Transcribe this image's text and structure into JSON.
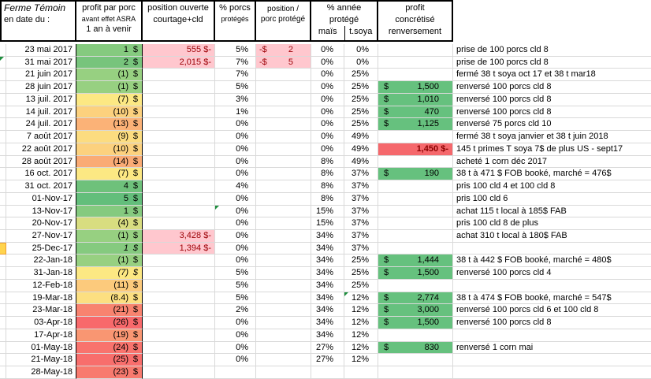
{
  "header": {
    "farm_title": "Ferme Témoin",
    "date_label": "en date du :",
    "profit_l1": "profit par porc",
    "profit_l2": "avant effet ASRA",
    "profit_l3": "1 an à venir",
    "position_l1": "position ouverte",
    "position_l2": "courtage+cld",
    "pct_porcs_l1": "% porcs",
    "pct_porcs_l2": "protégés",
    "pos_per_pig_l1": "position /",
    "pos_per_pig_l2": "porc protégé",
    "pct_year_label": "% année protégé",
    "corn_label": "maïs",
    "soy_label": "t.soya",
    "profit_real_l1": "profit",
    "profit_real_l2": "concrétisé",
    "profit_real_l3": "renversement"
  },
  "colors": {
    "pink_bg": "#FFC7CE",
    "pink_text": "#9C0006",
    "red_bg": "#F5686C",
    "red_text": "#8B0000",
    "green_bg": "#66C17E",
    "comment_triangle": "#1E8E3E",
    "row_marker_yellow": "#FFD44D",
    "gridline": "#d9d9d9",
    "border": "#000000"
  },
  "rows": [
    {
      "date": "23 mai 2017",
      "sliver": "",
      "profit": "1",
      "profit_bg": "#85CA7F",
      "profit_italic": false,
      "position": "555 $-",
      "position_pink": true,
      "pct_porcs": "5%",
      "pct_porcs_comment": false,
      "ppp_left": "-$",
      "ppp_right": "2",
      "ppp_pink": true,
      "mais": "0%",
      "soya": "0%",
      "soya_comment": false,
      "realized": null,
      "note": "prise de 100 porcs cld 8"
    },
    {
      "date": "31 mai 2017",
      "sliver": "comment",
      "profit": "2",
      "profit_bg": "#77C47C",
      "profit_italic": false,
      "position": "2,015 $-",
      "position_pink": true,
      "pct_porcs": "7%",
      "pct_porcs_comment": false,
      "ppp_left": "-$",
      "ppp_right": "5",
      "ppp_pink": true,
      "mais": "0%",
      "soya": "0%",
      "soya_comment": false,
      "realized": null,
      "note": "prise de 100 porcs cld 8"
    },
    {
      "date": "21 juin 2017",
      "sliver": "",
      "profit": "(1)",
      "profit_bg": "#97D081",
      "profit_italic": false,
      "position": "",
      "position_pink": false,
      "pct_porcs": "7%",
      "pct_porcs_comment": false,
      "ppp_left": "",
      "ppp_right": "",
      "ppp_pink": false,
      "mais": "0%",
      "soya": "25%",
      "soya_comment": false,
      "realized": null,
      "note": "fermé 38 t soya oct 17 et 38 t mar18"
    },
    {
      "date": "28 juin 2017",
      "sliver": "",
      "profit": "(1)",
      "profit_bg": "#97D081",
      "profit_italic": false,
      "position": "",
      "position_pink": false,
      "pct_porcs": "5%",
      "pct_porcs_comment": false,
      "ppp_left": "",
      "ppp_right": "",
      "ppp_pink": false,
      "mais": "0%",
      "soya": "25%",
      "soya_comment": false,
      "realized": {
        "type": "green",
        "value": "1,500"
      },
      "note": "renversé 100 porcs cld 8"
    },
    {
      "date": "13 juil. 2017",
      "sliver": "",
      "profit": "(7)",
      "profit_bg": "#FCE883",
      "profit_italic": false,
      "position": "",
      "position_pink": false,
      "pct_porcs": "3%",
      "pct_porcs_comment": false,
      "ppp_left": "",
      "ppp_right": "",
      "ppp_pink": false,
      "mais": "0%",
      "soya": "25%",
      "soya_comment": false,
      "realized": {
        "type": "green",
        "value": "1,010"
      },
      "note": "renversé 100 porcs cld 8"
    },
    {
      "date": "14 juil. 2017",
      "sliver": "",
      "profit": "(10)",
      "profit_bg": "#FCD17E",
      "profit_italic": false,
      "position": "",
      "position_pink": false,
      "pct_porcs": "1%",
      "pct_porcs_comment": false,
      "ppp_left": "",
      "ppp_right": "",
      "ppp_pink": false,
      "mais": "0%",
      "soya": "25%",
      "soya_comment": false,
      "realized": {
        "type": "green",
        "value": "470"
      },
      "note": "renversé 100 porcs cld 8"
    },
    {
      "date": "24 juil. 2017",
      "sliver": "",
      "profit": "(13)",
      "profit_bg": "#FBB277",
      "profit_italic": false,
      "position": "",
      "position_pink": false,
      "pct_porcs": "0%",
      "pct_porcs_comment": false,
      "ppp_left": "",
      "ppp_right": "",
      "ppp_pink": false,
      "mais": "0%",
      "soya": "25%",
      "soya_comment": false,
      "realized": {
        "type": "green",
        "value": "1,125"
      },
      "note": "renversé 75 porcs cld 10"
    },
    {
      "date": "7 août 2017",
      "sliver": "",
      "profit": "(9)",
      "profit_bg": "#FCDC80",
      "profit_italic": false,
      "position": "",
      "position_pink": false,
      "pct_porcs": "0%",
      "pct_porcs_comment": false,
      "ppp_left": "",
      "ppp_right": "",
      "ppp_pink": false,
      "mais": "0%",
      "soya": "49%",
      "soya_comment": false,
      "realized": null,
      "note": "fermé 38 t soya janvier et 38 t juin 2018"
    },
    {
      "date": "22 août 2017",
      "sliver": "",
      "profit": "(10)",
      "profit_bg": "#FCD17E",
      "profit_italic": false,
      "position": "",
      "position_pink": false,
      "pct_porcs": "0%",
      "pct_porcs_comment": false,
      "ppp_left": "",
      "ppp_right": "",
      "ppp_pink": false,
      "mais": "0%",
      "soya": "49%",
      "soya_comment": false,
      "realized": {
        "type": "red",
        "text": "1,450 $-"
      },
      "note": "145 t  primes T soya 7$ de plus US - sept17"
    },
    {
      "date": "28 août 2017",
      "sliver": "",
      "profit": "(14)",
      "profit_bg": "#FAAB75",
      "profit_italic": false,
      "position": "",
      "position_pink": false,
      "pct_porcs": "0%",
      "pct_porcs_comment": false,
      "ppp_left": "",
      "ppp_right": "",
      "ppp_pink": false,
      "mais": "8%",
      "soya": "49%",
      "soya_comment": false,
      "realized": null,
      "note": "acheté 1 corn déc 2017"
    },
    {
      "date": "16 oct. 2017",
      "sliver": "",
      "profit": "(7)",
      "profit_bg": "#FCE883",
      "profit_italic": false,
      "position": "",
      "position_pink": false,
      "pct_porcs": "0%",
      "pct_porcs_comment": false,
      "ppp_left": "",
      "ppp_right": "",
      "ppp_pink": false,
      "mais": "8%",
      "soya": "37%",
      "soya_comment": false,
      "realized": {
        "type": "green",
        "value": "190"
      },
      "note": "38 t  à 471 $ FOB booké, marché = 476$"
    },
    {
      "date": "31 oct. 2017",
      "sliver": "",
      "profit": "4",
      "profit_bg": "#6EC17B",
      "profit_italic": false,
      "position": "",
      "position_pink": false,
      "pct_porcs": "4%",
      "pct_porcs_comment": false,
      "ppp_left": "",
      "ppp_right": "",
      "ppp_pink": false,
      "mais": "8%",
      "soya": "37%",
      "soya_comment": false,
      "realized": null,
      "note": "pris 100 cld 4  et 100 cld  8"
    },
    {
      "date": "01-Nov-17",
      "sliver": "",
      "profit": "5",
      "profit_bg": "#63BE7B",
      "profit_italic": false,
      "position": "",
      "position_pink": false,
      "pct_porcs": "0%",
      "pct_porcs_comment": false,
      "ppp_left": "",
      "ppp_right": "",
      "ppp_pink": false,
      "mais": "8%",
      "soya": "37%",
      "soya_comment": false,
      "realized": null,
      "note": "pris 100 cld 6"
    },
    {
      "date": "13-Nov-17",
      "sliver": "",
      "profit": "1",
      "profit_bg": "#85CA7F",
      "profit_italic": false,
      "position": "",
      "position_pink": false,
      "pct_porcs": "0%",
      "pct_porcs_comment": true,
      "ppp_left": "",
      "ppp_right": "",
      "ppp_pink": false,
      "mais": "15%",
      "soya": "37%",
      "soya_comment": false,
      "realized": null,
      "note": "achat 115 t  local à 185$ FAB"
    },
    {
      "date": "20-Nov-17",
      "sliver": "",
      "profit": "(4)",
      "profit_bg": "#D8DD80",
      "profit_italic": false,
      "position": "",
      "position_pink": false,
      "pct_porcs": "0%",
      "pct_porcs_comment": false,
      "ppp_left": "",
      "ppp_right": "",
      "ppp_pink": false,
      "mais": "15%",
      "soya": "37%",
      "soya_comment": false,
      "realized": null,
      "note": "pris 100 cld 8 de plus"
    },
    {
      "date": "27-Nov-17",
      "sliver": "",
      "profit": "(1)",
      "profit_bg": "#97D081",
      "profit_italic": false,
      "position": "3,428 $-",
      "position_pink": true,
      "pct_porcs": "0%",
      "pct_porcs_comment": false,
      "ppp_left": "",
      "ppp_right": "",
      "ppp_pink": false,
      "mais": "34%",
      "soya": "37%",
      "soya_comment": false,
      "realized": null,
      "note": "achat 310 t  local à 180$ FAB"
    },
    {
      "date": "25-Dec-17",
      "sliver": "yellow",
      "profit": "1",
      "profit_bg": "#85CA7F",
      "profit_italic": true,
      "position": "1,394 $-",
      "position_pink": true,
      "pct_porcs": "0%",
      "pct_porcs_comment": false,
      "ppp_left": "",
      "ppp_right": "",
      "ppp_pink": false,
      "mais": "34%",
      "soya": "37%",
      "soya_comment": false,
      "realized": null,
      "note": ""
    },
    {
      "date": "22-Jan-18",
      "sliver": "",
      "profit": "(1)",
      "profit_bg": "#97D081",
      "profit_italic": false,
      "position": "",
      "position_pink": false,
      "pct_porcs": "0%",
      "pct_porcs_comment": false,
      "ppp_left": "",
      "ppp_right": "",
      "ppp_pink": false,
      "mais": "34%",
      "soya": "25%",
      "soya_comment": false,
      "realized": {
        "type": "green",
        "value": "1,444"
      },
      "note": "38 t  à 442 $ FOB booké, marché = 480$"
    },
    {
      "date": "31-Jan-18",
      "sliver": "",
      "profit": "(7)",
      "profit_bg": "#FCE883",
      "profit_italic": true,
      "position": "",
      "position_pink": false,
      "pct_porcs": "5%",
      "pct_porcs_comment": false,
      "ppp_left": "",
      "ppp_right": "",
      "ppp_pink": false,
      "mais": "34%",
      "soya": "25%",
      "soya_comment": false,
      "realized": {
        "type": "green",
        "value": "1,500"
      },
      "note": "renversé 100 porcs cld 4"
    },
    {
      "date": "12-Feb-18",
      "sliver": "",
      "profit": "(11)",
      "profit_bg": "#FCCA7C",
      "profit_italic": false,
      "position": "",
      "position_pink": false,
      "pct_porcs": "5%",
      "pct_porcs_comment": false,
      "ppp_left": "",
      "ppp_right": "",
      "ppp_pink": false,
      "mais": "34%",
      "soya": "25%",
      "soya_comment": false,
      "realized": null,
      "note": ""
    },
    {
      "date": "19-Mar-18",
      "sliver": "",
      "profit": "(8.4)",
      "profit_bg": "#FCDF81",
      "profit_italic": false,
      "position": "",
      "position_pink": false,
      "pct_porcs": "5%",
      "pct_porcs_comment": false,
      "ppp_left": "",
      "ppp_right": "",
      "ppp_pink": false,
      "mais": "34%",
      "soya": "12%",
      "soya_comment": true,
      "realized": {
        "type": "green",
        "value": "2,774"
      },
      "note": "38 t  à 474 $ FOB booké, marché = 547$"
    },
    {
      "date": "23-Mar-18",
      "sliver": "",
      "profit": "(21)",
      "profit_bg": "#F8836F",
      "profit_italic": false,
      "position": "",
      "position_pink": false,
      "pct_porcs": "2%",
      "pct_porcs_comment": false,
      "ppp_left": "",
      "ppp_right": "",
      "ppp_pink": false,
      "mais": "34%",
      "soya": "12%",
      "soya_comment": false,
      "realized": {
        "type": "green",
        "value": "3,000"
      },
      "note": "renversé 100 porcs cld 6 et 100  cld 8"
    },
    {
      "date": "03-Apr-18",
      "sliver": "",
      "profit": "(26)",
      "profit_bg": "#F8696B",
      "profit_italic": false,
      "position": "",
      "position_pink": false,
      "pct_porcs": "0%",
      "pct_porcs_comment": false,
      "ppp_left": "",
      "ppp_right": "",
      "ppp_pink": false,
      "mais": "34%",
      "soya": "12%",
      "soya_comment": false,
      "realized": {
        "type": "green",
        "value": "1,500"
      },
      "note": "renversé 100 porcs  cld 8"
    },
    {
      "date": "17-Apr-18",
      "sliver": "",
      "profit": "(19)",
      "profit_bg": "#F99672",
      "profit_italic": false,
      "position": "",
      "position_pink": false,
      "pct_porcs": "0%",
      "pct_porcs_comment": false,
      "ppp_left": "",
      "ppp_right": "",
      "ppp_pink": false,
      "mais": "34%",
      "soya": "12%",
      "soya_comment": false,
      "realized": null,
      "note": ""
    },
    {
      "date": "01-May-18",
      "sliver": "",
      "profit": "(24)",
      "profit_bg": "#F8736D",
      "profit_italic": false,
      "position": "",
      "position_pink": false,
      "pct_porcs": "0%",
      "pct_porcs_comment": false,
      "ppp_left": "",
      "ppp_right": "",
      "ppp_pink": false,
      "mais": "27%",
      "soya": "12%",
      "soya_comment": false,
      "realized": {
        "type": "green",
        "value": "830"
      },
      "note": "renversé 1 corn   mai"
    },
    {
      "date": "21-May-18",
      "sliver": "",
      "profit": "(25)",
      "profit_bg": "#F86E6C",
      "profit_italic": false,
      "position": "",
      "position_pink": false,
      "pct_porcs": "0%",
      "pct_porcs_comment": false,
      "ppp_left": "",
      "ppp_right": "",
      "ppp_pink": false,
      "mais": "27%",
      "soya": "12%",
      "soya_comment": false,
      "realized": null,
      "note": ""
    },
    {
      "date": "28-May-18",
      "sliver": "",
      "profit": "(23)",
      "profit_bg": "#F87A6E",
      "profit_italic": false,
      "position": "",
      "position_pink": false,
      "pct_porcs": "",
      "pct_porcs_comment": false,
      "ppp_left": "",
      "ppp_right": "",
      "ppp_pink": false,
      "mais": "",
      "soya": "",
      "soya_comment": false,
      "realized": null,
      "note": ""
    }
  ]
}
